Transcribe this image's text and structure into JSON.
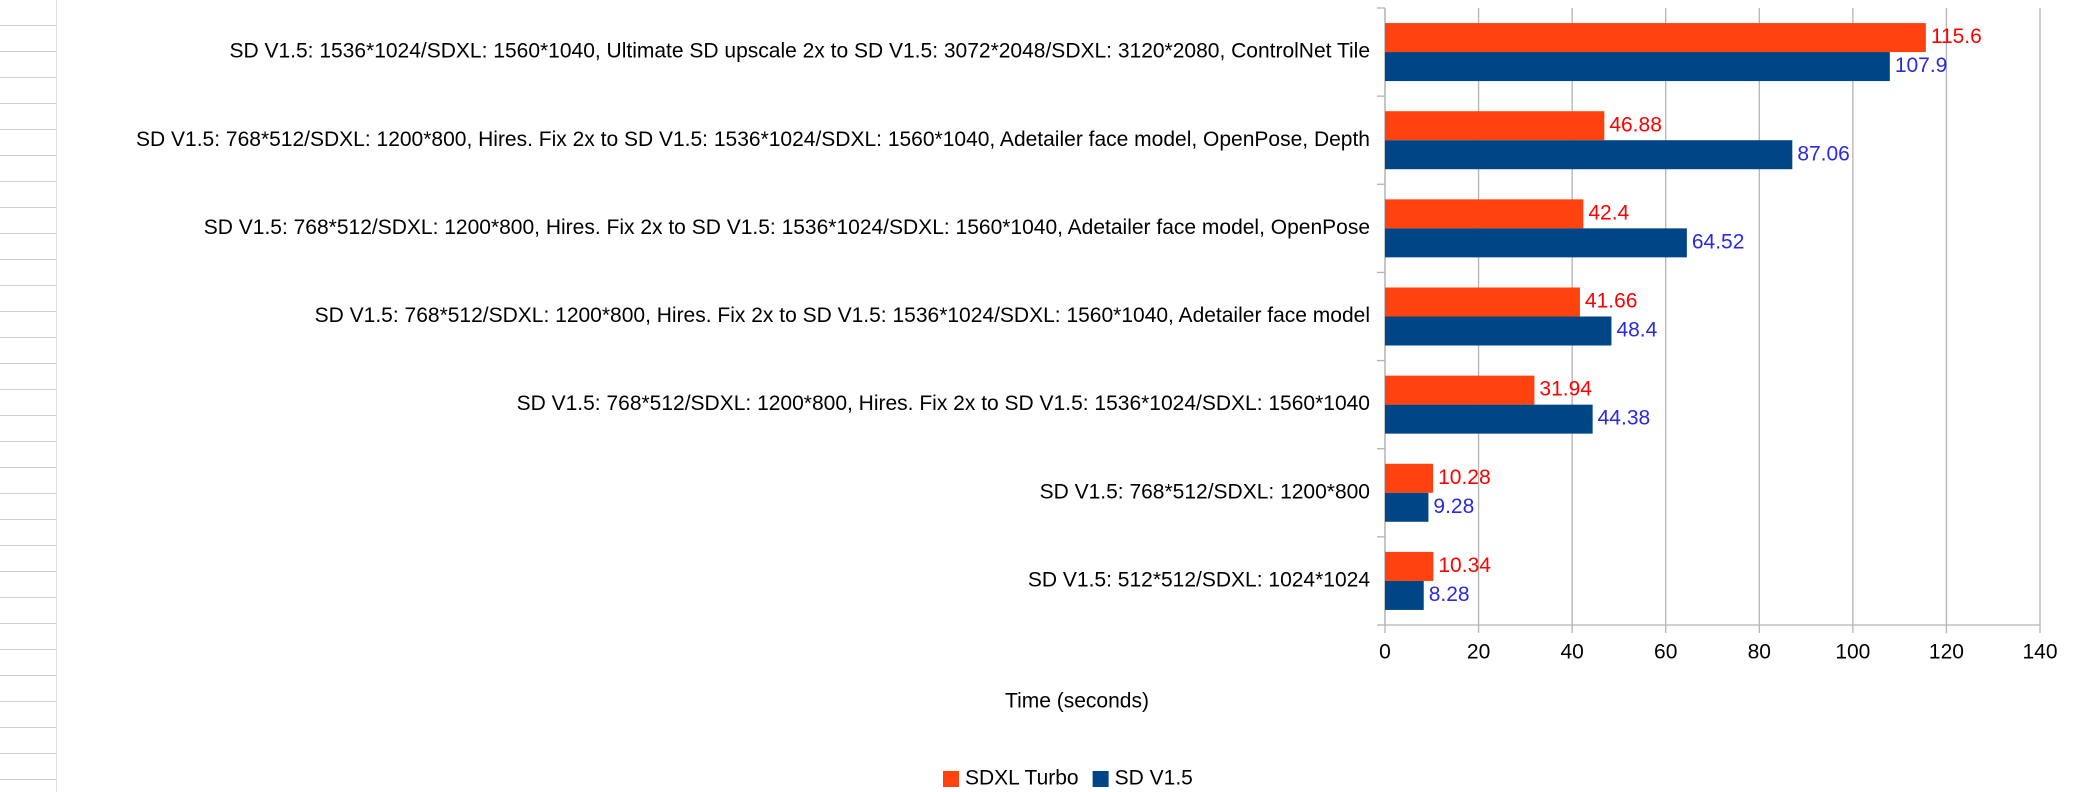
{
  "chart_data": {
    "type": "barh",
    "categories": [
      "SD V1.5: 1536*1024/SDXL: 1560*1040, Ultimate SD upscale 2x to SD V1.5: 3072*2048/SDXL: 3120*2080, ControlNet Tile",
      "SD V1.5: 768*512/SDXL: 1200*800, Hires. Fix 2x to SD V1.5: 1536*1024/SDXL: 1560*1040, Adetailer face model, OpenPose, Depth",
      "SD V1.5: 768*512/SDXL: 1200*800, Hires. Fix 2x to SD V1.5: 1536*1024/SDXL: 1560*1040, Adetailer face model, OpenPose",
      "SD V1.5: 768*512/SDXL: 1200*800, Hires. Fix 2x to SD V1.5: 1536*1024/SDXL: 1560*1040, Adetailer face model",
      "SD V1.5: 768*512/SDXL: 1200*800, Hires. Fix 2x to SD V1.5: 1536*1024/SDXL: 1560*1040",
      "SD V1.5: 768*512/SDXL: 1200*800",
      "SD V1.5: 512*512/SDXL: 1024*1024"
    ],
    "series": [
      {
        "name": "SDXL Turbo",
        "color": "#ff420e",
        "label_color": "#ff0000",
        "values": [
          115.6,
          46.88,
          42.4,
          41.66,
          31.94,
          10.28,
          10.34
        ]
      },
      {
        "name": "SD V1.5",
        "color": "#004586",
        "label_color": "#2a2ae0",
        "values": [
          107.9,
          87.06,
          64.52,
          48.4,
          44.38,
          9.28,
          8.28
        ]
      }
    ],
    "xlabel": "Time (seconds)",
    "xlim": [
      0,
      140
    ],
    "xticks": [
      0,
      20,
      40,
      60,
      80,
      100,
      120,
      140
    ],
    "grid": true,
    "legend": "bottom"
  }
}
